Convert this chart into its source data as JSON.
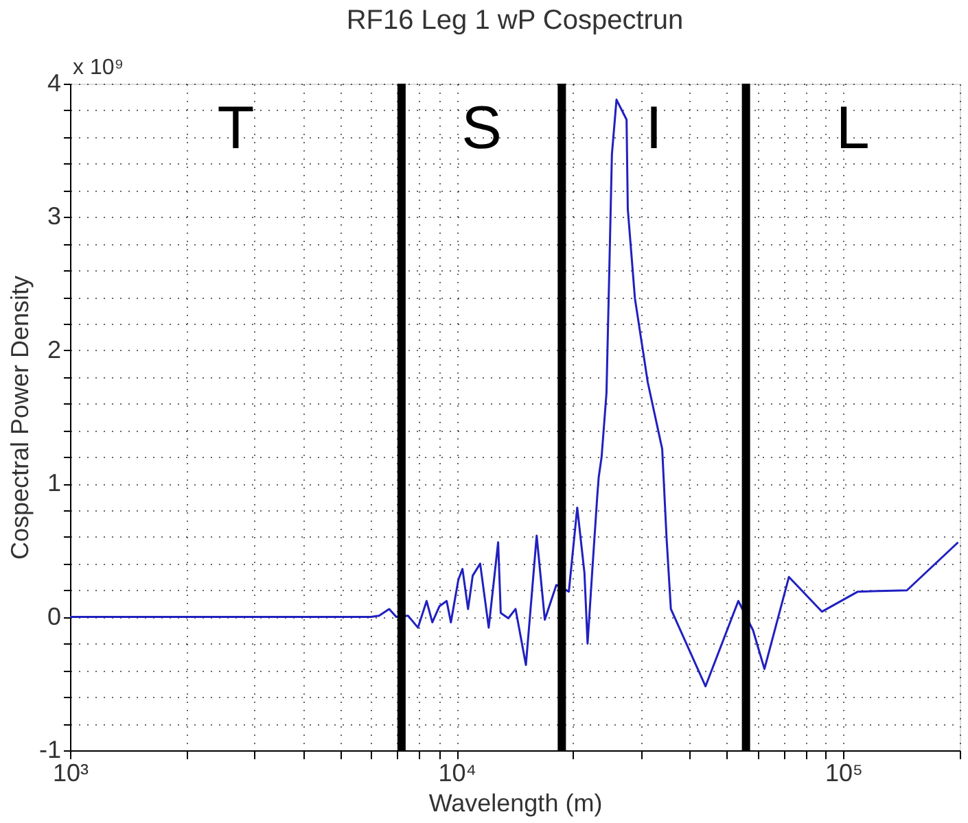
{
  "chart_data": {
    "type": "line",
    "title": "RF16 Leg 1 wP Cospectrun",
    "xlabel": "Wavelength (m)",
    "ylabel": "Cospectral Power Density",
    "x": [
      1000,
      2000,
      4000,
      6000,
      6300,
      6690,
      6980,
      7480,
      7940,
      8360,
      8650,
      9020,
      9420,
      9660,
      10100,
      10350,
      10700,
      11000,
      11500,
      12100,
      12800,
      13000,
      13600,
      14200,
      15100,
      16100,
      16900,
      18100,
      19500,
      20500,
      21400,
      21800,
      22400,
      23100,
      23300,
      23700,
      24400,
      24800,
      25200,
      25900,
      27500,
      27700,
      28900,
      31200,
      34000,
      34900,
      35800,
      44000,
      53500,
      58400,
      62500,
      72300,
      88000,
      109000,
      146000,
      198000
    ],
    "series": [
      {
        "color": "#2020c0",
        "values": [
          0,
          0,
          0,
          0,
          0.01,
          0.06,
          0,
          0.01,
          -0.08,
          0.12,
          -0.04,
          0.08,
          0.12,
          -0.04,
          0.28,
          0.36,
          0.06,
          0.31,
          0.4,
          -0.08,
          0.56,
          0.03,
          -0.01,
          0.06,
          -0.36,
          0.61,
          -0.02,
          0.24,
          0.19,
          0.82,
          0.33,
          -0.2,
          0.33,
          0.91,
          1.05,
          1.2,
          1.68,
          2.57,
          3.47,
          3.88,
          3.73,
          3.06,
          2.39,
          1.76,
          1.26,
          0.59,
          0.06,
          -0.52,
          0.12,
          -0.1,
          -0.39,
          0.3,
          0.04,
          0.19,
          0.2,
          0.56
        ]
      }
    ],
    "log": "x",
    "xlim": [
      1000,
      200000
    ],
    "ylim": [
      -1,
      4
    ],
    "xticks": [
      {
        "value": 1000,
        "label": "10³"
      },
      {
        "value": 2000,
        "label": null
      },
      {
        "value": 3000,
        "label": null
      },
      {
        "value": 4000,
        "label": null
      },
      {
        "value": 5000,
        "label": null
      },
      {
        "value": 6000,
        "label": null
      },
      {
        "value": 7000,
        "label": null
      },
      {
        "value": 8000,
        "label": null
      },
      {
        "value": 9000,
        "label": null
      },
      {
        "value": 10000,
        "label": "10⁴"
      },
      {
        "value": 20000,
        "label": null
      },
      {
        "value": 30000,
        "label": null
      },
      {
        "value": 40000,
        "label": null
      },
      {
        "value": 50000,
        "label": null
      },
      {
        "value": 60000,
        "label": null
      },
      {
        "value": 70000,
        "label": null
      },
      {
        "value": 80000,
        "label": null
      },
      {
        "value": 90000,
        "label": null
      },
      {
        "value": 100000,
        "label": "10⁵"
      },
      {
        "value": 200000,
        "label": null
      }
    ],
    "yticks": [
      -1,
      {
        "value": -0.8,
        "label": null
      },
      {
        "value": -0.6,
        "label": null
      },
      {
        "value": -0.4,
        "label": null
      },
      {
        "value": -0.2,
        "label": null
      },
      0,
      {
        "value": 0.2,
        "label": null
      },
      {
        "value": 0.4,
        "label": null
      },
      {
        "value": 0.6,
        "label": null
      },
      {
        "value": 0.8,
        "label": null
      },
      1,
      {
        "value": 1.2,
        "label": null
      },
      {
        "value": 1.4,
        "label": null
      },
      {
        "value": 1.6,
        "label": null
      },
      {
        "value": 1.8,
        "label": null
      },
      2,
      {
        "value": 2.2,
        "label": null
      },
      {
        "value": 2.4,
        "label": null
      },
      {
        "value": 2.6,
        "label": null
      },
      {
        "value": 2.8,
        "label": null
      },
      3,
      {
        "value": 3.2,
        "label": null
      },
      {
        "value": 3.4,
        "label": null
      },
      {
        "value": 3.6,
        "label": null
      },
      {
        "value": 3.8,
        "label": null
      },
      4
    ],
    "grid": true,
    "marker": "none",
    "line_style": "solid",
    "ref_lines": [
      {
        "axis": "x",
        "value": 7200,
        "color": "#000000"
      },
      {
        "axis": "x",
        "value": 18700,
        "color": "#000000"
      },
      {
        "axis": "x",
        "value": 56000,
        "color": "#000000"
      }
    ],
    "annotations": [
      "x 10⁹",
      "T",
      "S",
      "I",
      "L"
    ]
  }
}
